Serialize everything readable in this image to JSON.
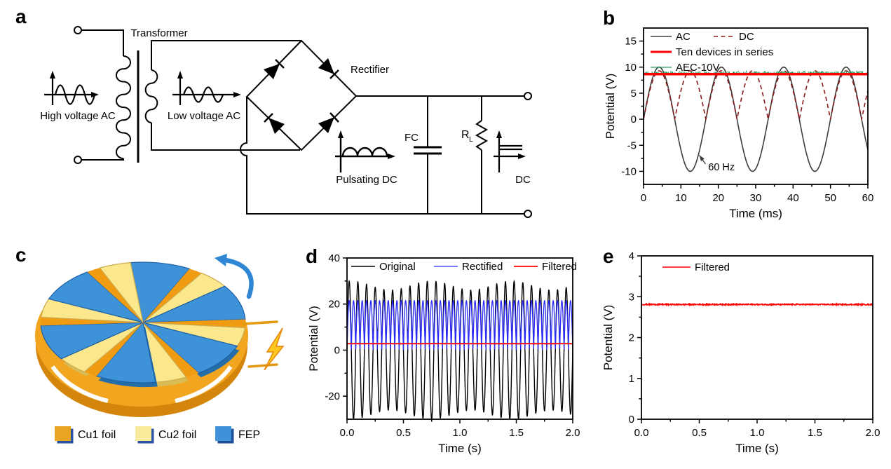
{
  "figure": {
    "panel_letters": [
      "a",
      "b",
      "c",
      "d",
      "e"
    ]
  },
  "panel_a": {
    "labels": {
      "transformer": "Transformer",
      "high_voltage_ac": "High voltage AC",
      "low_voltage_ac": "Low voltage AC",
      "rectifier": "Rectifier",
      "pulsating_dc": "Pulsating DC",
      "fc": "FC",
      "rl_base": "R",
      "rl_sub": "L",
      "dc": "DC"
    }
  },
  "panel_c": {
    "legend": [
      {
        "label": "Cu1 foil",
        "top_color": "#E8A521",
        "side_color": "#2B55A4"
      },
      {
        "label": "Cu2 foil",
        "top_color": "#F8EC9C",
        "side_color": "#2B55A4"
      },
      {
        "label": "FEP",
        "top_color": "#3E93D8",
        "side_color": "#1F4F96"
      }
    ],
    "sector_colors": {
      "cu1": "#F09C12",
      "cu2": "#FBE88C",
      "fep": "#3E93D8"
    },
    "disc_base_color": "#F2A51F",
    "disc_rim_color": "#D4860C",
    "rotation_arrow_color": "#2E86D4",
    "bolt_fill": "#FFC81E",
    "bolt_stroke": "#E8860B"
  },
  "chart_data": [
    {
      "id": "b",
      "type": "line",
      "title": "",
      "xlabel": "Time (ms)",
      "ylabel": "Potential (V)",
      "xlim": [
        0,
        60
      ],
      "ylim": [
        -12.5,
        17.5
      ],
      "x_unit_seconds": 0.001,
      "grid": false,
      "xticks": {
        "values": [
          0,
          10,
          20,
          30,
          40,
          50,
          60
        ],
        "labels": [
          "0",
          "10",
          "20",
          "30",
          "40",
          "50",
          "60"
        ]
      },
      "yticks": {
        "values": [
          -10,
          -5,
          0,
          5,
          10,
          15
        ],
        "labels": [
          "-10",
          "-5",
          "0",
          "5",
          "10",
          "15"
        ]
      },
      "legend_position": "inside top-left",
      "legend_rows": [
        [
          "AC",
          "DC"
        ],
        [
          "Ten devices in series"
        ],
        [
          "AEC-10V"
        ]
      ],
      "annotation": {
        "text": "60 Hz",
        "text_xy": [
          17.3,
          -9.8
        ],
        "arrow_from": [
          16.6,
          -8.6
        ],
        "arrow_to": [
          14.9,
          -6.9
        ]
      },
      "series": [
        {
          "name": "AC",
          "color": "#3D3D3D",
          "line": "solid",
          "width": 1.6,
          "wave": "sine",
          "amplitude_v": 10,
          "frequency_hz": 60
        },
        {
          "name": "DC",
          "color": "#8B1A1A",
          "line": "dashed",
          "width": 1.6,
          "wave": "abs-sine",
          "amplitude_v": 9.3,
          "frequency_hz": 60
        },
        {
          "name": "AEC-10V",
          "color": "#2F9E5F",
          "line": "dotted",
          "width": 1.2,
          "wave": "constant",
          "value_v": 8.9,
          "noise_v": 0.26
        },
        {
          "name": "Ten devices in series",
          "color": "#FF0000",
          "line": "solid",
          "width": 3.5,
          "wave": "constant",
          "value_v": 8.65,
          "noise_v": 0
        }
      ]
    },
    {
      "id": "d",
      "type": "line",
      "title": "",
      "xlabel": "Time (s)",
      "ylabel": "Potential (V)",
      "xlim": [
        0,
        2
      ],
      "ylim": [
        -30,
        40
      ],
      "x_unit_seconds": 1,
      "grid": false,
      "xticks": {
        "values": [
          0,
          0.5,
          1,
          1.5,
          2
        ],
        "labels": [
          "0.0",
          "0.5",
          "1.0",
          "1.5",
          "2.0"
        ]
      },
      "yticks": {
        "values": [
          -20,
          0,
          20,
          40
        ],
        "labels": [
          "-20",
          "0",
          "20",
          "40"
        ]
      },
      "legend_position": "inside top",
      "legend_rows": [
        [
          "Original",
          "Rectified",
          "Filtered"
        ]
      ],
      "series": [
        {
          "name": "Original",
          "color": "#000000",
          "line": "solid",
          "width": 1.4,
          "wave": "sine",
          "amplitude_v": 28,
          "frequency_hz": 13,
          "amp_mod_depth": 0.07,
          "amp_mod_hz": 1.4
        },
        {
          "name": "Rectified",
          "color": "#2A2AFF",
          "line": "solid",
          "width": 1.3,
          "wave": "abs-sine",
          "amplitude_v": 21.5,
          "frequency_hz": 13
        },
        {
          "name": "Filtered",
          "color": "#FF0000",
          "line": "solid",
          "width": 1.8,
          "wave": "constant",
          "value_v": 2.8,
          "noise_v": 0.05
        }
      ]
    },
    {
      "id": "e",
      "type": "line",
      "title": "",
      "xlabel": "Time (s)",
      "ylabel": "Potential (V)",
      "xlim": [
        0,
        2
      ],
      "ylim": [
        0,
        4
      ],
      "x_unit_seconds": 1,
      "grid": false,
      "xticks": {
        "values": [
          0,
          0.5,
          1,
          1.5,
          2
        ],
        "labels": [
          "0.0",
          "0.5",
          "1.0",
          "1.5",
          "2.0"
        ]
      },
      "yticks": {
        "values": [
          0,
          1,
          2,
          3,
          4
        ],
        "labels": [
          "0",
          "1",
          "2",
          "3",
          "4"
        ]
      },
      "legend_position": "inside top-left",
      "legend_rows": [
        [
          "Filtered"
        ]
      ],
      "series": [
        {
          "name": "Filtered",
          "color": "#FF0000",
          "line": "solid",
          "width": 1.5,
          "wave": "constant",
          "value_v": 2.81,
          "noise_v": 0.015
        }
      ]
    }
  ]
}
